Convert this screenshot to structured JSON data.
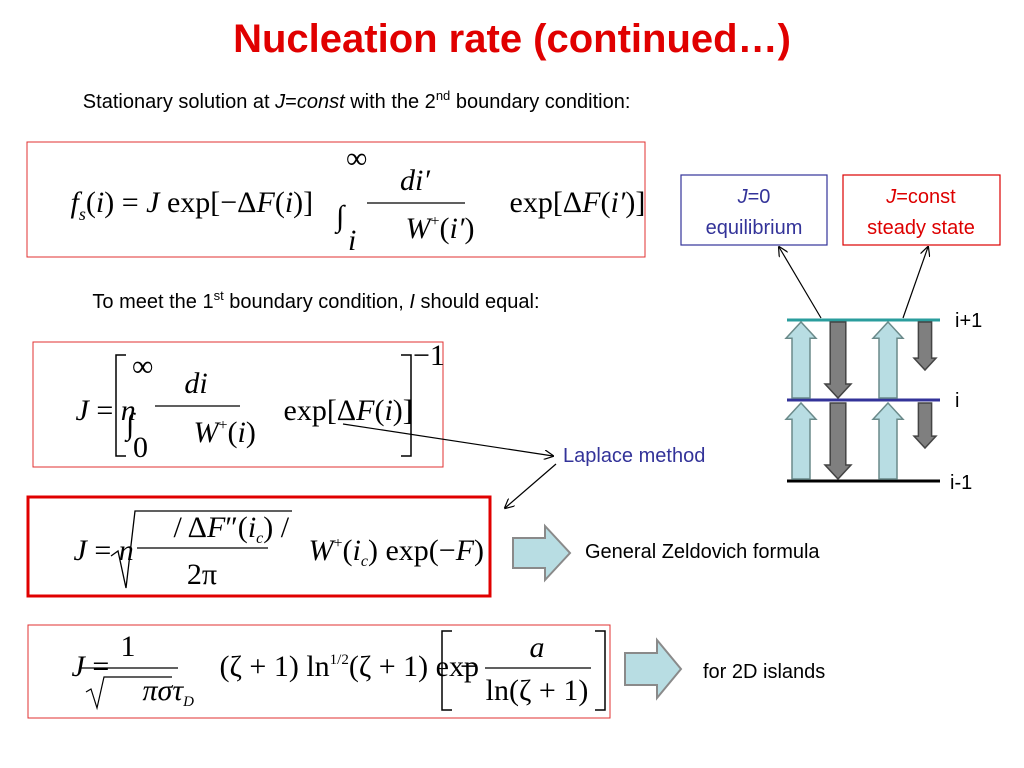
{
  "title": "Nucleation rate (continued…)",
  "stationary_line": [
    "Stationary solution at ",
    "J",
    "=",
    "const",
    " with the 2",
    "nd",
    " boundary condition:"
  ],
  "equation_1": {
    "lhs": [
      "f",
      "s",
      "(",
      "i",
      ") = ",
      "J",
      " exp[−Δ",
      "F",
      "(",
      "i",
      ")]"
    ],
    "integral": [
      "∞",
      "∫",
      "i"
    ],
    "numerator": [
      "di′"
    ],
    "denominator": [
      "W",
      "+",
      "(",
      "i′",
      ")"
    ],
    "rhs": [
      "exp[Δ",
      "F",
      "(",
      "i′",
      ")]"
    ]
  },
  "first_condition_line": [
    "To meet the 1",
    "st",
    " boundary condition, ",
    "I",
    " should equal:"
  ],
  "equation_2": {
    "lhs": [
      "J",
      " = ",
      "n"
    ],
    "integral": [
      "∞",
      "∫",
      "0"
    ],
    "numerator": [
      "di"
    ],
    "denominator": [
      "W",
      "+",
      "(",
      "i",
      ")"
    ],
    "rhs": [
      "exp[Δ",
      "F",
      "(",
      "i",
      ")]"
    ],
    "exponent": "−1"
  },
  "laplace_label": "Laplace method",
  "equation_3": {
    "lhs": [
      "J",
      " = ",
      "n"
    ],
    "numerator": [
      "/ Δ",
      "F",
      "″(",
      "i",
      "c",
      ") /"
    ],
    "denominator": [
      "2π"
    ],
    "rhs": [
      "W",
      "+",
      "(",
      "i",
      "c",
      ") exp(−",
      "F",
      ")"
    ]
  },
  "zeldovich_label": "General Zeldovich formula",
  "equation_4": {
    "lhs": [
      "J",
      " = "
    ],
    "numerator": [
      "1"
    ],
    "denominator": [
      "πστ",
      "D"
    ],
    "middle": [
      "(ζ + 1) ln",
      "1/2",
      "(ζ + 1) exp"
    ],
    "bracket": [
      "−",
      "a",
      "ln(ζ + 1)"
    ]
  },
  "islands_label": "for 2D islands",
  "equilibrium_box": [
    "J",
    "=0",
    "equilibrium"
  ],
  "steady_state_box": [
    "J",
    "=const",
    "steady state"
  ],
  "levels": [
    "i+1",
    "i",
    "i-1"
  ]
}
